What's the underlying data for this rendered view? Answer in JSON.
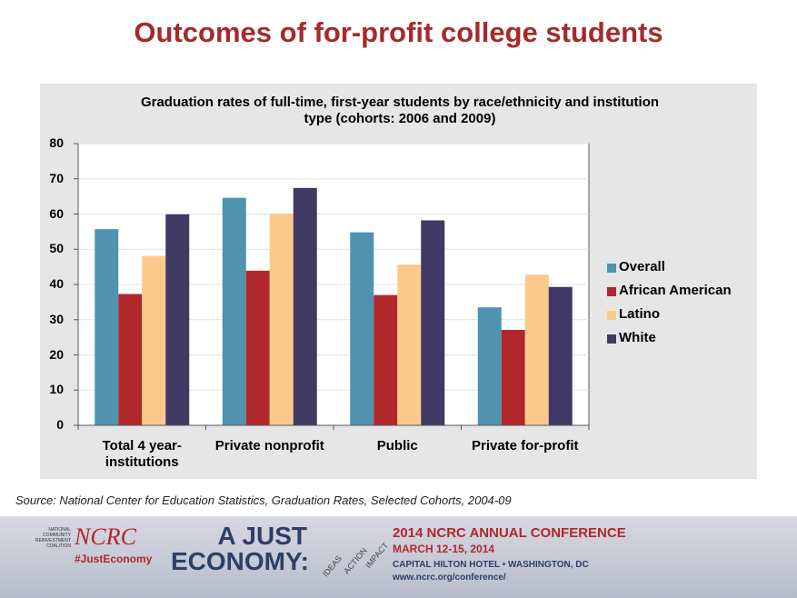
{
  "title": "Outcomes of for-profit college students",
  "chart_data": {
    "type": "bar",
    "title": "Graduation rates of full-time, first-year students by race/ethnicity and institution type (cohorts: 2006 and 2009)",
    "categories": [
      "Total 4 year- institutions",
      "Private nonprofit",
      "Public",
      "Private for-profit"
    ],
    "series": [
      {
        "name": "Overall",
        "color": "#4f93b0",
        "values": [
          55.7,
          64.6,
          54.8,
          33.5
        ]
      },
      {
        "name": "African American",
        "color": "#b0282a",
        "values": [
          37.3,
          43.9,
          37.0,
          27.1
        ]
      },
      {
        "name": "Latino",
        "color": "#fbc98b",
        "values": [
          48.1,
          60.1,
          45.6,
          42.8
        ]
      },
      {
        "name": "White",
        "color": "#3e3a63",
        "values": [
          59.9,
          67.4,
          58.2,
          39.3
        ]
      }
    ],
    "ylim": [
      0,
      80
    ],
    "yticks": [
      0,
      10,
      20,
      30,
      40,
      50,
      60,
      70,
      80
    ],
    "grid": true,
    "legend": "right"
  },
  "source": "Source: National Center for Education Statistics, Graduation Rates, Selected Cohorts, 2004-09",
  "banner": {
    "org_small": "NATIONAL COMMUNITY REINVESTMENT COALITION",
    "org": "NCRC",
    "hashtag": "#JustEconomy",
    "theme": "A JUST ECONOMY:",
    "pillars": [
      "IDEAS",
      "ACTION",
      "IMPACT"
    ],
    "conference": "2014 NCRC ANNUAL CONFERENCE",
    "dates": "MARCH 12-15, 2014",
    "venue": "CAPITAL HILTON HOTEL • WASHINGTON, DC",
    "url": "www.ncrc.org/conference/"
  }
}
